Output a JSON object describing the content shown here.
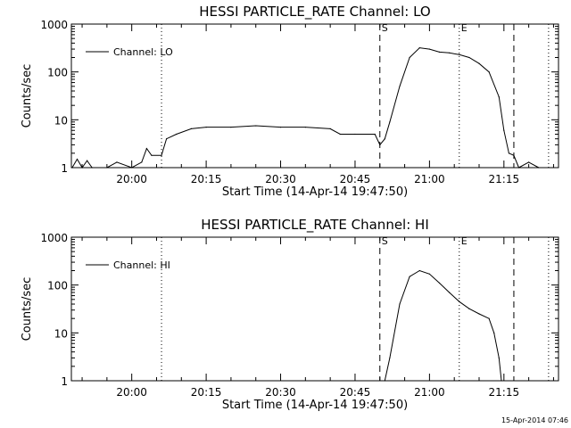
{
  "chart_data": [
    {
      "type": "line",
      "title": "HESSI PARTICLE_RATE Channel: LO",
      "xlabel": "Start Time (14-Apr-14 19:47:50)",
      "ylabel": "Counts/sec",
      "yscale": "log",
      "ylim": [
        1,
        1000
      ],
      "xlim": [
        "19:47:50",
        "21:26:00"
      ],
      "xticks": [
        "20:00",
        "20:15",
        "20:30",
        "20:45",
        "21:00",
        "21:15"
      ],
      "yticks": [
        "1",
        "10",
        "100",
        "1000"
      ],
      "grid": false,
      "legend": {
        "position": "top-left",
        "entries": [
          "Channel: LO"
        ]
      },
      "markers": [
        {
          "label": "S",
          "time": "20:50:00",
          "style": "dashed"
        },
        {
          "label": "E",
          "time": "21:06:00",
          "style": "dotted"
        },
        {
          "label": "",
          "time": "20:06:00",
          "style": "dotted"
        },
        {
          "label": "",
          "time": "21:17:00",
          "style": "dashed"
        },
        {
          "label": "",
          "time": "21:24:00",
          "style": "dotted"
        }
      ],
      "series": [
        {
          "x": [
            "19:48:00",
            "19:49:00",
            "19:50:00",
            "19:51:00",
            "19:52:00",
            "19:55:00",
            "19:57:00",
            "20:00:00",
            "20:02:00",
            "20:03:00",
            "20:04:00",
            "20:06:00",
            "20:07:00",
            "20:09:00",
            "20:12:00",
            "20:15:00",
            "20:20:00",
            "20:25:00",
            "20:30:00",
            "20:35:00",
            "20:40:00",
            "20:42:00",
            "20:45:00",
            "20:49:00",
            "20:50:00",
            "20:51:00",
            "20:52:00",
            "20:54:00",
            "20:56:00",
            "20:58:00",
            "21:00:00",
            "21:02:00",
            "21:04:00",
            "21:06:00",
            "21:08:00",
            "21:10:00",
            "21:12:00",
            "21:14:00",
            "21:15:00",
            "21:16:00",
            "21:17:00",
            "21:18:00",
            "21:20:00",
            "21:22:00"
          ],
          "y": [
            1,
            1.5,
            1,
            1.4,
            1,
            1,
            1.3,
            1,
            1.3,
            2.5,
            1.8,
            1.8,
            4,
            5,
            6.5,
            7,
            7,
            7.5,
            7,
            7,
            6.5,
            5,
            5,
            5,
            3,
            4,
            9,
            50,
            200,
            320,
            300,
            260,
            250,
            230,
            200,
            150,
            100,
            30,
            6,
            2,
            1.8,
            1,
            1.3,
            1
          ]
        }
      ]
    },
    {
      "type": "line",
      "title": "HESSI PARTICLE_RATE Channel: HI",
      "xlabel": "Start Time (14-Apr-14 19:47:50)",
      "ylabel": "Counts/sec",
      "yscale": "log",
      "ylim": [
        1,
        1000
      ],
      "xlim": [
        "19:47:50",
        "21:26:00"
      ],
      "xticks": [
        "20:00",
        "20:15",
        "20:30",
        "20:45",
        "21:00",
        "21:15"
      ],
      "yticks": [
        "1",
        "10",
        "100",
        "1000"
      ],
      "grid": false,
      "legend": {
        "position": "top-left",
        "entries": [
          "Channel: HI"
        ]
      },
      "markers": [
        {
          "label": "S",
          "time": "20:50:00",
          "style": "dashed"
        },
        {
          "label": "E",
          "time": "21:06:00",
          "style": "dotted"
        },
        {
          "label": "",
          "time": "20:06:00",
          "style": "dotted"
        },
        {
          "label": "",
          "time": "21:17:00",
          "style": "dashed"
        },
        {
          "label": "",
          "time": "21:24:00",
          "style": "dotted"
        }
      ],
      "series": [
        {
          "x": [
            "20:51:00",
            "20:52:00",
            "20:54:00",
            "20:56:00",
            "20:58:00",
            "21:00:00",
            "21:02:00",
            "21:04:00",
            "21:06:00",
            "21:08:00",
            "21:10:00",
            "21:12:00",
            "21:13:00",
            "21:14:00",
            "21:14:30"
          ],
          "y": [
            1,
            3,
            40,
            150,
            200,
            170,
            110,
            70,
            45,
            32,
            25,
            20,
            10,
            3,
            1
          ]
        }
      ]
    }
  ],
  "footer": {
    "timestamp": "15-Apr-2014 07:46"
  }
}
